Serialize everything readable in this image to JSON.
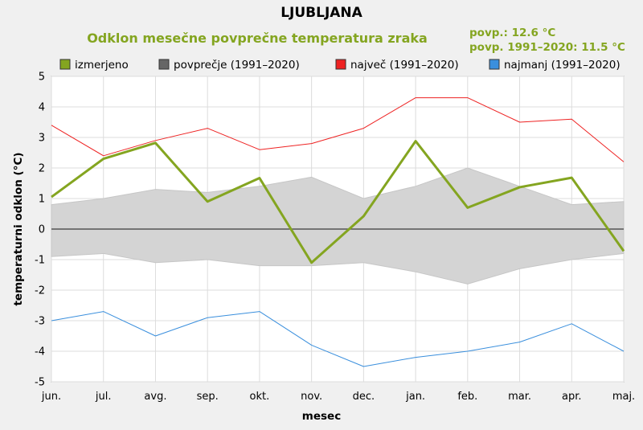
{
  "header": {
    "title": "LJUBLJANA",
    "subtitle": "Odklon mesečne povprečne temperatura zraka",
    "stat_current": "povp.: 12.6 °C",
    "stat_normal": "povp. 1991–2020: 11.5 °C"
  },
  "legend": [
    {
      "label": "izmerjeno",
      "color": "#84a520"
    },
    {
      "label": "povprečje (1991–2020)",
      "color": "#666666"
    },
    {
      "label": "največ (1991–2020)",
      "color": "#ee2222"
    },
    {
      "label": "najmanj (1991–2020)",
      "color": "#3a8fdd"
    }
  ],
  "chart_data": {
    "type": "line",
    "xlabel": "mesec",
    "ylabel": "temperaturni odklon (°C)",
    "ylim": [
      -5,
      5
    ],
    "yticks": [
      5,
      4,
      3,
      2,
      1,
      0,
      -1,
      -2,
      -3,
      -4,
      -5
    ],
    "ytick_labels": [
      "5",
      "4",
      "3",
      "2",
      "1",
      "0",
      "-1",
      "-2",
      "-3",
      "-4",
      "-5"
    ],
    "categories": [
      "jun.",
      "jul.",
      "avg.",
      "sep.",
      "okt.",
      "nov.",
      "dec.",
      "jan.",
      "feb.",
      "mar.",
      "apr.",
      "maj."
    ],
    "grid": true,
    "series": [
      {
        "name": "izmerjeno",
        "color": "#84a520",
        "values": [
          1.05,
          2.3,
          2.82,
          0.9,
          1.67,
          -1.1,
          0.42,
          2.88,
          0.7,
          1.37,
          1.68,
          -0.72
        ]
      },
      {
        "name": "največ (1991–2020)",
        "color": "#ee2222",
        "values": [
          3.4,
          2.4,
          2.9,
          3.3,
          2.6,
          2.8,
          3.3,
          4.3,
          4.3,
          3.5,
          3.6,
          2.2
        ]
      },
      {
        "name": "najmanj (1991–2020)",
        "color": "#3a8fdd",
        "values": [
          -3.0,
          -2.7,
          -3.5,
          -2.9,
          -2.7,
          -3.8,
          -4.5,
          -4.2,
          -4.0,
          -3.7,
          -3.1,
          -4.0
        ]
      }
    ],
    "band": {
      "name": "povprečje (1991–2020)",
      "color": "#d4d4d4",
      "upper": [
        0.8,
        1.0,
        1.3,
        1.2,
        1.4,
        1.7,
        1.0,
        1.4,
        2.0,
        1.4,
        0.8,
        0.9
      ],
      "lower": [
        -0.9,
        -0.8,
        -1.1,
        -1.0,
        -1.2,
        -1.2,
        -1.1,
        -1.4,
        -1.8,
        -1.3,
        -1.0,
        -0.8
      ]
    }
  }
}
